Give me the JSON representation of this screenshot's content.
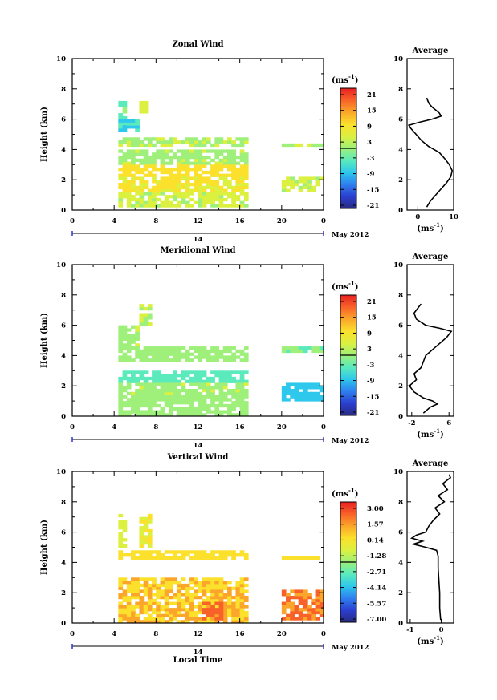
{
  "panels": [
    {
      "title": "Zonal Wind",
      "ylabel": "Height (km)",
      "yticks": [
        "0",
        "2",
        "4",
        "6",
        "8",
        "10"
      ],
      "xticks": [
        "0",
        "4",
        "8",
        "12",
        "16",
        "20",
        "0"
      ],
      "day_label": "14",
      "date_label": "May 2012",
      "cb_unit": "(ms",
      "cb_sup": "-1",
      "cb_ticks": [
        "21",
        "15",
        "9",
        "3",
        "-3",
        "-9",
        "-15",
        "-21"
      ],
      "avg_title": "Average",
      "avg_xticks": [
        "0",
        "10"
      ],
      "avg_yticks": [
        "0",
        "2",
        "4",
        "6",
        "8",
        "10"
      ],
      "avg_unit": "(ms",
      "avg_sup": "-1"
    },
    {
      "title": "Meridional Wind",
      "ylabel": "Height (km)",
      "yticks": [
        "0",
        "2",
        "4",
        "6",
        "8",
        "10"
      ],
      "xticks": [
        "0",
        "4",
        "8",
        "12",
        "16",
        "20",
        "0"
      ],
      "day_label": "14",
      "date_label": "May 2012",
      "cb_unit": "(ms",
      "cb_sup": "-1",
      "cb_ticks": [
        "21",
        "15",
        "9",
        "3",
        "-3",
        "-9",
        "-15",
        "-21"
      ],
      "avg_title": "Average",
      "avg_xticks": [
        "-2",
        "6"
      ],
      "avg_yticks": [
        "0",
        "2",
        "4",
        "6",
        "8",
        "10"
      ],
      "avg_unit": "(ms",
      "avg_sup": "-1"
    },
    {
      "title": "Vertical Wind",
      "ylabel": "Height (km)",
      "yticks": [
        "0",
        "2",
        "4",
        "6",
        "8",
        "10"
      ],
      "xticks": [
        "0",
        "4",
        "8",
        "12",
        "16",
        "20",
        "0"
      ],
      "day_label": "14",
      "date_label": "May 2012",
      "xlabel": "Local Time",
      "cb_unit": "(ms",
      "cb_sup": "-1",
      "cb_ticks": [
        "3.00",
        "1.57",
        "0.14",
        "-1.28",
        "-2.71",
        "-4.14",
        "-5.57",
        "-7.00"
      ],
      "avg_title": "Average",
      "avg_xticks": [
        "-1",
        "0"
      ],
      "avg_yticks": [
        "0",
        "2",
        "4",
        "6",
        "8",
        "10"
      ],
      "avg_unit": "(ms",
      "avg_sup": "-1"
    }
  ],
  "chart_data": [
    {
      "type": "heatmap",
      "title": "Zonal Wind",
      "xlabel": "",
      "ylabel": "Height (km)",
      "xlim": [
        0,
        24
      ],
      "ylim": [
        0,
        10
      ],
      "colorbar_range": [
        -24,
        24
      ],
      "colorbar_unit": "(ms-1)",
      "colors": [
        "#2a2a80",
        "#2b3fd0",
        "#2f7fee",
        "#2ec8ec",
        "#5aeabc",
        "#9ef07a",
        "#dcf040",
        "#fbe02c",
        "#fba62a",
        "#f86228",
        "#e82022"
      ],
      "regions": [
        {
          "x": [
            4.4,
            5.2
          ],
          "y": [
            5.2,
            7.2
          ],
          "value": -3
        },
        {
          "x": [
            6.4,
            7.2
          ],
          "y": [
            6.4,
            7.2
          ],
          "value": 4
        },
        {
          "x": [
            4.4,
            6.4
          ],
          "y": [
            5.2,
            6.0
          ],
          "value": -7
        },
        {
          "x": [
            4.4,
            16.8
          ],
          "y": [
            4.2,
            4.8
          ],
          "value": 2
        },
        {
          "x": [
            4.4,
            16.8
          ],
          "y": [
            3.0,
            4.0
          ],
          "value": 1
        },
        {
          "x": [
            4.4,
            16.8
          ],
          "y": [
            2.2,
            3.0
          ],
          "value": 9
        },
        {
          "x": [
            4.4,
            16.8
          ],
          "y": [
            1.2,
            2.2
          ],
          "value": 7
        },
        {
          "x": [
            4.4,
            16.8
          ],
          "y": [
            0.2,
            1.2
          ],
          "value": 3
        },
        {
          "x": [
            20.0,
            23.8
          ],
          "y": [
            4.2,
            4.4
          ],
          "value": 2
        },
        {
          "x": [
            20.0,
            24.0
          ],
          "y": [
            1.2,
            2.2
          ],
          "value": 3
        }
      ],
      "average_profile": {
        "x_label": "(ms-1)",
        "xlim": [
          -3,
          10
        ],
        "height": [
          0.2,
          0.6,
          1.0,
          1.4,
          1.8,
          2.2,
          2.6,
          3.0,
          3.4,
          3.8,
          4.2,
          4.6,
          5.0,
          5.4,
          5.6,
          5.8,
          6.0,
          6.2,
          6.4,
          6.6,
          6.8,
          7.0,
          7.2,
          7.4
        ],
        "values": [
          2.5,
          3.5,
          5.0,
          6.5,
          8.0,
          9.2,
          9.6,
          8.8,
          7.5,
          6.0,
          3.0,
          1.0,
          -0.5,
          -2.0,
          -2.5,
          0.5,
          4.0,
          6.5,
          6.0,
          5.0,
          4.0,
          3.2,
          2.8,
          2.5
        ]
      }
    },
    {
      "type": "heatmap",
      "title": "Meridional Wind",
      "xlabel": "",
      "ylabel": "Height (km)",
      "xlim": [
        0,
        24
      ],
      "ylim": [
        0,
        10
      ],
      "colorbar_range": [
        -24,
        24
      ],
      "colorbar_unit": "(ms-1)",
      "colors": [
        "#2a2a80",
        "#2b3fd0",
        "#2f7fee",
        "#2ec8ec",
        "#5aeabc",
        "#9ef07a",
        "#dcf040",
        "#fbe02c",
        "#fba62a",
        "#f86228",
        "#e82022"
      ],
      "regions": [
        {
          "x": [
            6.4,
            7.4
          ],
          "y": [
            6.0,
            7.4
          ],
          "value": 2
        },
        {
          "x": [
            4.4,
            6.4
          ],
          "y": [
            4.4,
            6.0
          ],
          "value": 1
        },
        {
          "x": [
            4.4,
            16.8
          ],
          "y": [
            3.6,
            4.6
          ],
          "value": 0
        },
        {
          "x": [
            4.4,
            16.8
          ],
          "y": [
            2.2,
            3.0
          ],
          "value": -4
        },
        {
          "x": [
            4.4,
            16.8
          ],
          "y": [
            1.4,
            2.2
          ],
          "value": 1
        },
        {
          "x": [
            4.4,
            16.8
          ],
          "y": [
            0.0,
            1.4
          ],
          "value": 0
        },
        {
          "x": [
            20.0,
            24.0
          ],
          "y": [
            4.2,
            4.6
          ],
          "value": -2
        },
        {
          "x": [
            20.0,
            24.0
          ],
          "y": [
            1.0,
            2.2
          ],
          "value": -9
        }
      ],
      "average_profile": {
        "x_label": "(ms-1)",
        "xlim": [
          -3,
          7
        ],
        "height": [
          0.2,
          0.6,
          0.8,
          1.0,
          1.2,
          1.6,
          2.0,
          2.4,
          2.8,
          3.2,
          3.6,
          4.0,
          4.4,
          4.8,
          5.2,
          5.6,
          5.8,
          6.0,
          6.4,
          6.8,
          7.2,
          7.4
        ],
        "values": [
          0.5,
          2.0,
          3.5,
          2.5,
          0.5,
          -1.5,
          -2.5,
          -1.0,
          -1.5,
          0.0,
          0.5,
          1.0,
          2.5,
          4.0,
          5.5,
          6.5,
          4.0,
          1.0,
          -1.0,
          -1.5,
          -0.5,
          0.0
        ]
      }
    },
    {
      "type": "heatmap",
      "title": "Vertical Wind",
      "xlabel": "Local Time",
      "ylabel": "Height (km)",
      "xlim": [
        0,
        24
      ],
      "ylim": [
        0,
        10
      ],
      "colorbar_range": [
        -7.0,
        3.0
      ],
      "colorbar_unit": "(ms-1)",
      "colors": [
        "#2a2a80",
        "#2b3fd0",
        "#2f7fee",
        "#2ec8ec",
        "#5aeabc",
        "#9ef07a",
        "#dcf040",
        "#fbe02c",
        "#fba62a",
        "#f86228",
        "#e82022"
      ],
      "regions": [
        {
          "x": [
            4.4,
            5.2
          ],
          "y": [
            5.0,
            7.2
          ],
          "value": -1.0
        },
        {
          "x": [
            6.4,
            7.4
          ],
          "y": [
            5.0,
            7.2
          ],
          "value": -0.6
        },
        {
          "x": [
            4.4,
            16.8
          ],
          "y": [
            4.2,
            4.8
          ],
          "value": -0.2
        },
        {
          "x": [
            4.4,
            16.8
          ],
          "y": [
            2.2,
            3.0
          ],
          "value": 0.1
        },
        {
          "x": [
            4.4,
            16.8
          ],
          "y": [
            0.0,
            2.2
          ],
          "value": 0.3
        },
        {
          "x": [
            12.4,
            14.2
          ],
          "y": [
            0.2,
            1.4
          ],
          "value": 1.4
        },
        {
          "x": [
            20.0,
            23.8
          ],
          "y": [
            4.2,
            4.4
          ],
          "value": 0.0
        },
        {
          "x": [
            20.0,
            24.0
          ],
          "y": [
            0.2,
            2.2
          ],
          "value": 1.2
        }
      ],
      "average_profile": {
        "x_label": "(ms-1)",
        "xlim": [
          -1.1,
          0.4
        ],
        "height": [
          0.2,
          1.0,
          2.0,
          3.0,
          3.6,
          4.0,
          4.4,
          4.8,
          5.0,
          5.2,
          5.4,
          5.6,
          5.8,
          6.0,
          6.4,
          6.8,
          7.2,
          7.6,
          8.0,
          8.4,
          8.8,
          9.2,
          9.6,
          9.8
        ],
        "values": [
          -0.02,
          -0.05,
          -0.05,
          -0.08,
          -0.1,
          -0.1,
          -0.1,
          -0.15,
          -0.5,
          -0.9,
          -0.6,
          -0.95,
          -0.8,
          -0.5,
          -0.4,
          -0.25,
          -0.05,
          -0.2,
          0.1,
          -0.1,
          0.2,
          0.05,
          0.3,
          0.25
        ]
      }
    }
  ]
}
